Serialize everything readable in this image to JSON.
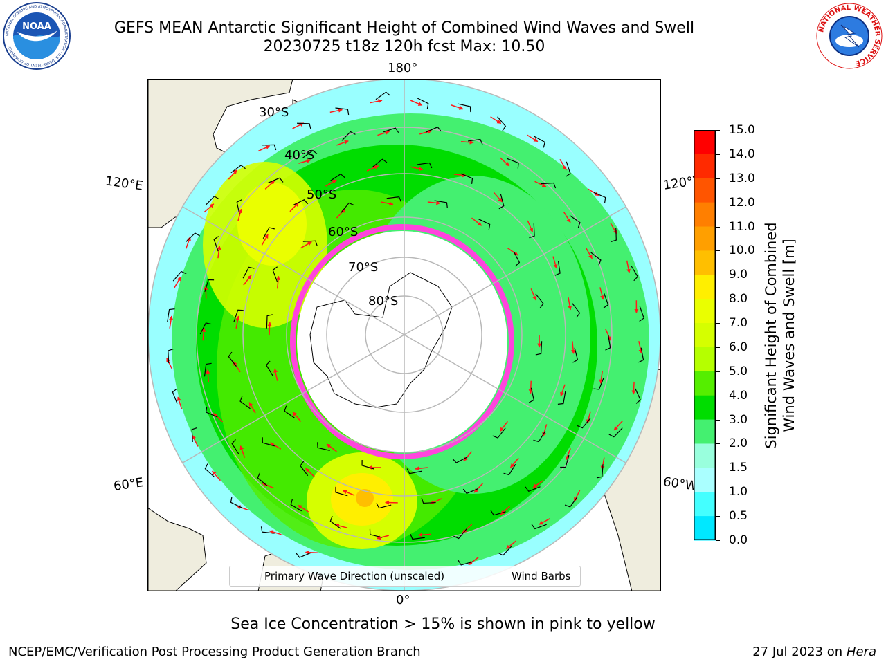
{
  "title": {
    "line1": "GEFS MEAN Antarctic Significant Height of Combined Wind Waves and Swell",
    "line2": "20230725 t18z 120h fcst   Max: 10.50"
  },
  "logos": {
    "left": "NOAA",
    "right": "NATIONAL WEATHER SERVICE",
    "noaa_ring": "NATIONAL OCEANIC AND ATMOSPHERIC ADMINISTRATION · U.S. DEPARTMENT OF COMMERCE"
  },
  "map": {
    "projection": "south-polar-stereographic",
    "lon_labels": {
      "top": "180°",
      "bottom": "0°",
      "left_upper": "120°E",
      "left_lower": "60°E",
      "right_upper": "120°W",
      "right_lower": "60°W"
    },
    "lat_labels": [
      "30°S",
      "40°S",
      "50°S",
      "60°S",
      "70°S",
      "80°S"
    ],
    "colors": {
      "land": "#efedde",
      "graticule": "#b8b8b8",
      "wave_arrow": "#ff1a1a",
      "wind_barb": "#000000",
      "sea_ice": "#ff44dd"
    }
  },
  "colorbar": {
    "title": "Significant Height of Combined Wind Waves and Swell [m]",
    "title_line1": "Significant Height of Combined",
    "title_line2": "Wind Waves and Swell [m]",
    "ticks": [
      "15.0",
      "14.0",
      "13.0",
      "12.0",
      "11.0",
      "10.0",
      "9.0",
      "8.0",
      "7.0",
      "6.0",
      "5.0",
      "4.0",
      "3.0",
      "2.0",
      "1.5",
      "1.0",
      "0.5",
      "0.0"
    ],
    "colors_top_to_bottom": [
      "#ff0000",
      "#ff2a00",
      "#ff5500",
      "#ff7f00",
      "#ff9f00",
      "#ffbf00",
      "#ffef00",
      "#eaff00",
      "#d5ff00",
      "#b5ff00",
      "#55ee00",
      "#00dd00",
      "#44f070",
      "#99ffdd",
      "#aaffff",
      "#44ffff",
      "#00e8ff",
      "#0080ff",
      "#0000ff"
    ]
  },
  "legend": {
    "wave_label": "Primary Wave Direction (unscaled)",
    "barb_label": "Wind Barbs"
  },
  "subtitle": "Sea Ice Concentration > 15% is shown in pink to yellow",
  "footer": {
    "left": "NCEP/EMC/Verification Post Processing Product Generation Branch",
    "right_date": "27 Jul 2023 on ",
    "right_host": "Hera"
  }
}
